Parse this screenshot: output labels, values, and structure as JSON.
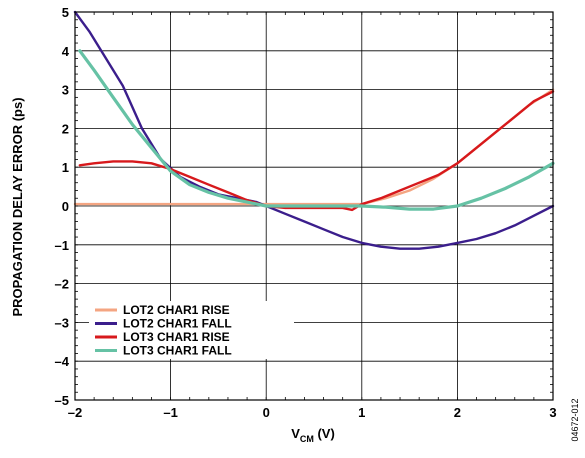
{
  "chart_data": {
    "type": "line",
    "xlabel_main": "V",
    "xlabel_sub": "CM",
    "xlabel_unit": " (V)",
    "ylabel": "PROPAGATION DELAY ERROR (ps)",
    "xlim": [
      -2,
      3
    ],
    "ylim": [
      -5,
      5
    ],
    "x_ticks": [
      -2,
      -1,
      0,
      1,
      2,
      3
    ],
    "y_ticks": [
      -5,
      -4,
      -3,
      -2,
      -1,
      0,
      1,
      2,
      3,
      4,
      5
    ],
    "x_tick_labels": [
      "–2",
      "–1",
      "0",
      "1",
      "2",
      "3"
    ],
    "y_tick_labels": [
      "–5",
      "–4",
      "–3",
      "–2",
      "–1",
      "0",
      "1",
      "2",
      "3",
      "4",
      "5"
    ],
    "grid": true,
    "legend_position": "bottom-left",
    "figure_id": "04672-012",
    "series": [
      {
        "name": "LOT2 CHAR1 RISE",
        "color": "#F4A582",
        "x": [
          -2.0,
          -1.5,
          -1.0,
          -0.5,
          0.0,
          0.5,
          0.9,
          1.0,
          1.25,
          1.5,
          1.75,
          2.0,
          2.25,
          2.5,
          2.75,
          3.0
        ],
        "y": [
          0.05,
          0.05,
          0.05,
          0.05,
          0.05,
          0.05,
          0.05,
          0.05,
          0.2,
          0.4,
          0.7,
          1.1,
          1.6,
          2.1,
          2.6,
          3.0
        ]
      },
      {
        "name": "LOT2 CHAR1 FALL",
        "color": "#3B1E8C",
        "x": [
          -2.0,
          -1.85,
          -1.7,
          -1.5,
          -1.3,
          -1.1,
          -0.9,
          -0.7,
          -0.5,
          -0.3,
          -0.1,
          0.0,
          0.2,
          0.4,
          0.6,
          0.8,
          1.0,
          1.2,
          1.4,
          1.6,
          1.8,
          2.0,
          2.2,
          2.4,
          2.6,
          2.8,
          3.0
        ],
        "y": [
          5.0,
          4.5,
          3.9,
          3.1,
          2.0,
          1.2,
          0.75,
          0.5,
          0.3,
          0.2,
          0.1,
          0.0,
          -0.2,
          -0.4,
          -0.6,
          -0.8,
          -0.95,
          -1.05,
          -1.1,
          -1.1,
          -1.05,
          -0.95,
          -0.85,
          -0.7,
          -0.5,
          -0.25,
          0.0
        ]
      },
      {
        "name": "LOT3 CHAR1 RISE",
        "color": "#D7191C",
        "x": [
          -1.95,
          -1.8,
          -1.6,
          -1.4,
          -1.2,
          -1.0,
          -0.8,
          -0.6,
          -0.4,
          -0.2,
          0.0,
          0.2,
          0.4,
          0.6,
          0.8,
          0.9,
          1.0,
          1.2,
          1.4,
          1.6,
          1.8,
          2.0,
          2.2,
          2.4,
          2.6,
          2.8,
          3.0
        ],
        "y": [
          1.05,
          1.1,
          1.15,
          1.15,
          1.1,
          0.95,
          0.75,
          0.55,
          0.35,
          0.15,
          0.0,
          -0.05,
          -0.05,
          -0.05,
          -0.05,
          -0.1,
          0.05,
          0.2,
          0.4,
          0.6,
          0.8,
          1.1,
          1.5,
          1.9,
          2.3,
          2.7,
          2.95
        ]
      },
      {
        "name": "LOT3 CHAR1 FALL",
        "color": "#66C2A5",
        "x": [
          -1.95,
          -1.8,
          -1.6,
          -1.4,
          -1.2,
          -1.0,
          -0.8,
          -0.6,
          -0.4,
          -0.2,
          0.0,
          0.25,
          0.5,
          0.75,
          1.0,
          1.25,
          1.5,
          1.75,
          2.0,
          2.25,
          2.5,
          2.75,
          3.0
        ],
        "y": [
          4.0,
          3.5,
          2.8,
          2.1,
          1.5,
          0.9,
          0.55,
          0.35,
          0.2,
          0.1,
          0.0,
          0.0,
          0.0,
          0.0,
          0.0,
          -0.03,
          -0.08,
          -0.08,
          0.0,
          0.2,
          0.45,
          0.75,
          1.1
        ]
      }
    ]
  }
}
